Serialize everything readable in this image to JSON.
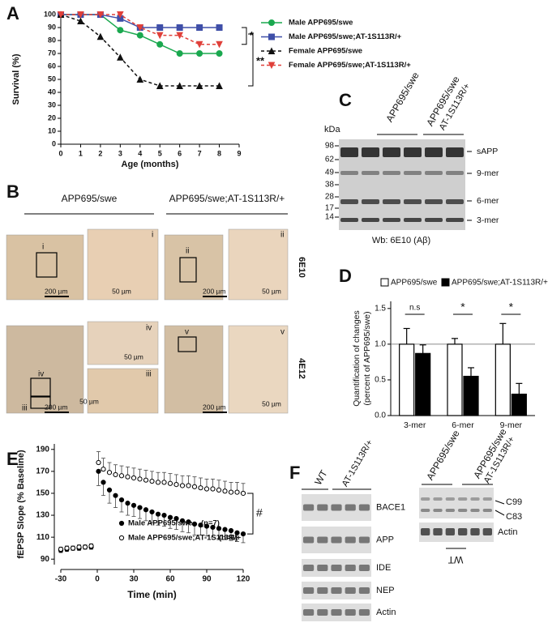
{
  "panel_labels": [
    "A",
    "B",
    "C",
    "D",
    "E",
    "F"
  ],
  "chart_data": [
    {
      "type": "line",
      "x": [
        0,
        1,
        2,
        3,
        4,
        5,
        6,
        7,
        8
      ],
      "xlim": [
        0,
        9
      ],
      "xticks": [
        0,
        1,
        2,
        3,
        4,
        5,
        6,
        7,
        8,
        9
      ],
      "ylim": [
        0,
        100
      ],
      "yticks": [
        0,
        10,
        20,
        30,
        40,
        50,
        60,
        70,
        80,
        90,
        100
      ],
      "xlabel": "Age (months)",
      "ylabel": "Survival (%)",
      "series": [
        {
          "name": "Male APP695/swe",
          "color": "#1aa84f",
          "marker": "circle",
          "dashed": false,
          "values": [
            100,
            100,
            100,
            88,
            84,
            77,
            70,
            70,
            70
          ]
        },
        {
          "name": "Male APP695/swe;AT-1S113R/+",
          "color": "#3f4fa8",
          "marker": "square",
          "dashed": false,
          "values": [
            100,
            100,
            100,
            97,
            90,
            90,
            90,
            90,
            90
          ]
        },
        {
          "name": "Female APP695/swe",
          "color": "#111111",
          "marker": "triangle-up",
          "dashed": true,
          "values": [
            100,
            95,
            83,
            67,
            50,
            45,
            45,
            45,
            45
          ]
        },
        {
          "name": "Female APP695/swe;AT-1S113R/+",
          "color": "#e0403a",
          "marker": "triangle-down",
          "dashed": true,
          "values": [
            100,
            100,
            100,
            100,
            90,
            84,
            84,
            77,
            77
          ]
        }
      ],
      "annotations": [
        "*",
        "**"
      ]
    },
    {
      "type": "bar",
      "categories": [
        "3-mer",
        "6-mer",
        "9-mer"
      ],
      "ylim": [
        0,
        1.6
      ],
      "yticks": [
        {
          "value": 0,
          "label": "0.0"
        },
        {
          "value": 0.5,
          "label": "0.5"
        },
        {
          "value": 1,
          "label": "1.0"
        },
        {
          "value": 1.5,
          "label": "1.5"
        }
      ],
      "ylabel": [
        "Quantification of changes",
        "(percent of APP695/swe)"
      ],
      "reference_line": 1,
      "series": [
        {
          "name": "APP695/swe",
          "color": "#ffffff",
          "values": [
            1.0,
            1.0,
            1.0
          ],
          "errors": [
            0.22,
            0.08,
            0.29
          ]
        },
        {
          "name": "APP695/swe;AT-1S113R/+",
          "color": "#000000",
          "values": [
            0.87,
            0.55,
            0.3
          ],
          "errors": [
            0.12,
            0.12,
            0.15
          ]
        }
      ],
      "annotations": [
        "n.s",
        "*",
        "*"
      ]
    },
    {
      "type": "scatter",
      "x": [
        -30,
        -25,
        -20,
        -15,
        -10,
        -5,
        1,
        5,
        10,
        15,
        20,
        25,
        30,
        35,
        40,
        45,
        50,
        55,
        60,
        65,
        70,
        75,
        80,
        85,
        90,
        95,
        100,
        105,
        110,
        115,
        120
      ],
      "xlim": [
        -30,
        120
      ],
      "xticks": [
        -30,
        0,
        30,
        60,
        90,
        120
      ],
      "ylim": [
        85,
        195
      ],
      "yticks": [
        90,
        110,
        130,
        150,
        170,
        190
      ],
      "xlabel": "Time (min)",
      "ylabel": "fEPSP Slope (% Baseline)",
      "series": [
        {
          "name": "Male APP695/swe",
          "n": "(n=7)",
          "color": "#000000",
          "error_direction": "down",
          "values": [
            98,
            99,
            100,
            100,
            101,
            101,
            170,
            160,
            153,
            148,
            144,
            141,
            139,
            137,
            135,
            133,
            131,
            130,
            128,
            127,
            125,
            124,
            122,
            121,
            120,
            119,
            118,
            117,
            116,
            114,
            113
          ],
          "errors": [
            2,
            2,
            2,
            2,
            2,
            2,
            13,
            12,
            12,
            11,
            11,
            11,
            10,
            10,
            10,
            10,
            10,
            10,
            10,
            10,
            10,
            10,
            10,
            9,
            9,
            9,
            9,
            9,
            9,
            8,
            8
          ]
        },
        {
          "name": "Male APP695/swe;AT-1S113R/+",
          "n": "(n=6)",
          "color": "#ffffff",
          "error_direction": "up",
          "values": [
            99,
            100,
            100,
            101,
            101,
            102,
            178,
            172,
            169,
            167,
            166,
            165,
            164,
            163,
            162,
            161,
            160,
            160,
            159,
            158,
            157,
            157,
            156,
            155,
            154,
            154,
            153,
            152,
            151,
            151,
            150
          ],
          "errors": [
            2,
            2,
            2,
            2,
            2,
            2,
            10,
            10,
            9,
            9,
            9,
            9,
            9,
            9,
            9,
            9,
            9,
            9,
            9,
            9,
            9,
            9,
            9,
            9,
            9,
            9,
            9,
            9,
            9,
            9,
            9
          ]
        }
      ],
      "annotations": [
        "#"
      ]
    }
  ],
  "histology": {
    "headers": [
      "APP695/swe",
      "APP695/swe;AT-1S113R/+"
    ],
    "antibodies": [
      "6E10",
      "4E12"
    ],
    "regions": [
      "i",
      "ii",
      "iii",
      "iv",
      "v"
    ],
    "scale_large": "200 µm",
    "scale_small": "50 µm"
  },
  "blot_c": {
    "columns": [
      [
        "APP695/swe"
      ],
      [
        "APP695/swe",
        "AT-1S113R/+"
      ]
    ],
    "unit": "kDa",
    "markers": [
      "98",
      "62",
      "49",
      "38",
      "28",
      "17",
      "14"
    ],
    "bands": [
      "sAPP",
      "9-mer",
      "6-mer",
      "3-mer"
    ],
    "caption": "Wb: 6E10 (Aβ)"
  },
  "blot_f": {
    "left_columns": [
      "WT",
      "AT-1S113R/+"
    ],
    "left_rows": [
      "BACE1",
      "APP",
      "IDE",
      "NEP",
      "Actin"
    ],
    "right_columns": [
      [
        "APP695/swe"
      ],
      [
        "APP695/swe",
        "AT-1S113R/+"
      ]
    ],
    "right_bands": [
      "C99",
      "C83",
      "Actin"
    ],
    "right_footer": "WT"
  }
}
